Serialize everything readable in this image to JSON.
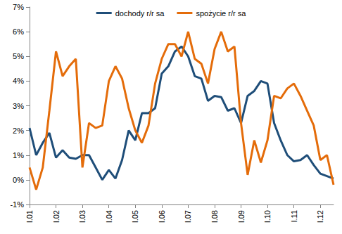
{
  "chart_data": {
    "type": "line",
    "categories": [
      "I.01",
      null,
      null,
      null,
      "I.02",
      null,
      null,
      null,
      "I.03",
      null,
      null,
      null,
      "I.04",
      null,
      null,
      null,
      "I.05",
      null,
      null,
      null,
      "I.06",
      null,
      null,
      null,
      "I.07",
      null,
      null,
      null,
      "I.08",
      null,
      null,
      null,
      "I.09",
      null,
      null,
      null,
      "I.10",
      null,
      null,
      null,
      "I.11",
      null,
      null,
      null,
      "I.12",
      null,
      null
    ],
    "series": [
      {
        "name": "dochody r/r sa",
        "color": "#1f4e79",
        "values": [
          2.1,
          1.0,
          1.5,
          1.9,
          0.9,
          1.2,
          0.9,
          0.85,
          1.0,
          1.0,
          0.5,
          0.0,
          0.4,
          0.05,
          0.8,
          2.0,
          1.6,
          2.7,
          2.7,
          2.9,
          4.3,
          4.6,
          5.2,
          5.4,
          5.0,
          4.2,
          4.1,
          3.2,
          3.4,
          3.35,
          2.8,
          2.9,
          2.3,
          3.4,
          3.6,
          4.0,
          3.9,
          2.3,
          1.6,
          1.0,
          0.75,
          0.8,
          1.0,
          0.6,
          0.25,
          0.15,
          0.05
        ]
      },
      {
        "name": "spożycie r/r sa",
        "color": "#e46c0a",
        "values": [
          0.5,
          -0.4,
          0.5,
          2.8,
          5.2,
          4.2,
          4.6,
          4.9,
          0.5,
          2.3,
          2.1,
          2.2,
          4.0,
          4.6,
          4.1,
          2.9,
          2.0,
          1.5,
          2.2,
          3.9,
          4.9,
          5.5,
          5.5,
          5.0,
          6.0,
          4.9,
          4.7,
          3.9,
          5.3,
          6.0,
          5.2,
          5.4,
          2.3,
          0.2,
          1.6,
          0.7,
          1.6,
          3.4,
          3.3,
          3.7,
          3.9,
          3.4,
          2.8,
          2.2,
          0.8,
          1.0,
          -0.2
        ]
      }
    ],
    "ylim": [
      -1,
      7
    ],
    "yticks": [
      {
        "value": -1,
        "label": "-1%"
      },
      {
        "value": 0,
        "label": "0%"
      },
      {
        "value": 1,
        "label": "1%"
      },
      {
        "value": 2,
        "label": "2%"
      },
      {
        "value": 3,
        "label": "3%"
      },
      {
        "value": 4,
        "label": "4%"
      },
      {
        "value": 5,
        "label": "5%"
      },
      {
        "value": 6,
        "label": "6%"
      },
      {
        "value": 7,
        "label": "7%"
      }
    ],
    "grid": false,
    "legend": "top"
  }
}
